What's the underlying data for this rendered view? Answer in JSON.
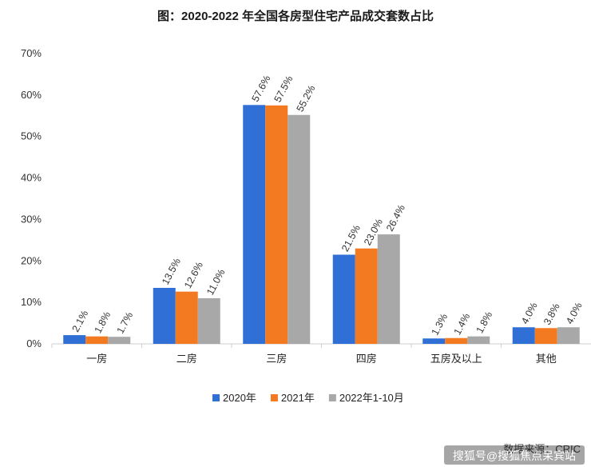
{
  "chart_data": {
    "type": "bar",
    "title": "图：2020-2022 年全国各房型住宅产品成交套数占比",
    "xlabel": "",
    "ylabel": "",
    "ylim": [
      0,
      70
    ],
    "yticks": [
      "0%",
      "10%",
      "20%",
      "30%",
      "40%",
      "50%",
      "60%",
      "70%"
    ],
    "categories": [
      "一房",
      "二房",
      "三房",
      "四房",
      "五房及以上",
      "其他"
    ],
    "series": [
      {
        "name": "2020年",
        "color": "#2f6fd6",
        "values": [
          2.1,
          13.5,
          57.6,
          21.5,
          1.3,
          4.0
        ],
        "labels": [
          "2.1%",
          "13.5%",
          "57.6%",
          "21.5%",
          "1.3%",
          "4.0%"
        ]
      },
      {
        "name": "2021年",
        "color": "#f47a22",
        "values": [
          1.8,
          12.6,
          57.5,
          23.0,
          1.4,
          3.8
        ],
        "labels": [
          "1.8%",
          "12.6%",
          "57.5%",
          "23.0%",
          "1.4%",
          "3.8%"
        ]
      },
      {
        "name": "2022年1-10月",
        "color": "#a8a8a8",
        "values": [
          1.7,
          11.0,
          55.2,
          26.4,
          1.8,
          4.0
        ],
        "labels": [
          "1.7%",
          "11.0%",
          "55.2%",
          "26.4%",
          "1.8%",
          "4.0%"
        ]
      }
    ],
    "grid": false,
    "legend": "bottom"
  },
  "source_note": "数据来源：CRIC",
  "watermark": "搜狐号@搜狐焦点呆宾站"
}
